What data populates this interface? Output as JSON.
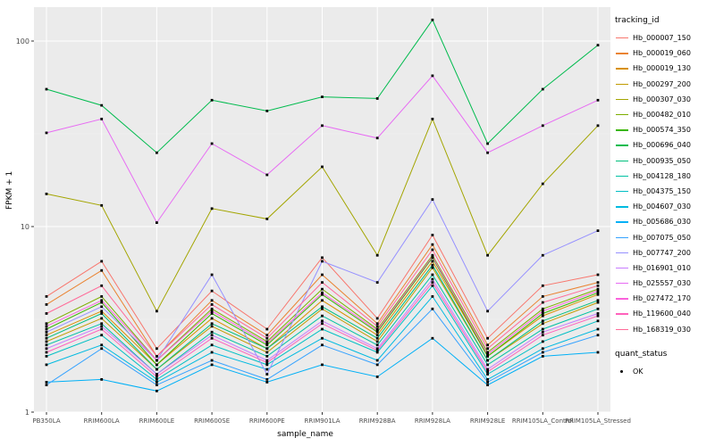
{
  "page": {
    "background": "#FFFFFF",
    "panel_background": "#EBEBEB",
    "grid_major_color": "#FFFFFF",
    "grid_minor_color": "#F4F4F4",
    "tick_text_color": "#4D4D4D",
    "axis_title_color": "#000000"
  },
  "axes": {
    "x_title": "sample_name",
    "y_title": "FPKM + 1"
  },
  "legend": {
    "tracking_title": "tracking_id",
    "quant_title": "quant_status",
    "quant_items": [
      {
        "label": "OK",
        "key": "black-point",
        "color": "#000000"
      }
    ]
  },
  "chart_data": {
    "type": "line",
    "xlabel": "sample_name",
    "ylabel": "FPKM + 1",
    "y_scale": "log10",
    "ylim": [
      1,
      155
    ],
    "y_ticks": [
      1,
      10,
      100
    ],
    "y_tick_labels": [
      "1",
      "10",
      "100"
    ],
    "y_minor": [
      3.162,
      31.62
    ],
    "grid": true,
    "legend_position": "right",
    "point_color": "#000000",
    "categories": [
      "PB350LA",
      "RRIM600LA",
      "RRIM600LE",
      "RRIM600SE",
      "RRIM600PE",
      "RRIM901LA",
      "RRIM928BA",
      "RRIM928LA",
      "RRIM928LE",
      "RRIM105LA_Control",
      "RRIM105LA_Stressed"
    ],
    "series": [
      {
        "name": "Hb_000007_150",
        "color": "#F8766D",
        "values": [
          4.2,
          6.5,
          2.2,
          4.5,
          2.8,
          6.8,
          3.2,
          9.0,
          2.5,
          4.8,
          5.5
        ]
      },
      {
        "name": "Hb_000019_060",
        "color": "#EA8331",
        "values": [
          3.8,
          5.8,
          2.0,
          4.0,
          2.6,
          5.5,
          3.0,
          8.0,
          2.3,
          4.2,
          5.0
        ]
      },
      {
        "name": "Hb_000019_130",
        "color": "#D89000",
        "values": [
          2.6,
          3.5,
          1.8,
          3.2,
          2.2,
          4.0,
          2.6,
          6.5,
          2.0,
          3.3,
          4.3
        ]
      },
      {
        "name": "Hb_000297_200",
        "color": "#C09B00",
        "values": [
          2.4,
          3.2,
          1.7,
          2.9,
          2.1,
          3.6,
          2.4,
          6.0,
          1.9,
          3.0,
          3.9
        ]
      },
      {
        "name": "Hb_000307_030",
        "color": "#A3A500",
        "values": [
          15,
          13,
          3.5,
          12.5,
          11,
          21,
          7.0,
          38,
          7.0,
          17,
          35
        ]
      },
      {
        "name": "Hb_000482_010",
        "color": "#7CAE00",
        "values": [
          3.0,
          4.2,
          1.9,
          3.6,
          2.4,
          4.6,
          2.8,
          7.0,
          2.1,
          3.6,
          4.6
        ]
      },
      {
        "name": "Hb_000574_350",
        "color": "#39B600",
        "values": [
          2.8,
          3.9,
          1.8,
          3.4,
          2.3,
          4.3,
          2.7,
          6.8,
          2.0,
          3.4,
          4.4
        ]
      },
      {
        "name": "Hb_000696_040",
        "color": "#00BB4E",
        "values": [
          55,
          45,
          25,
          48,
          42,
          50,
          49,
          130,
          28,
          55,
          95
        ]
      },
      {
        "name": "Hb_000935_050",
        "color": "#00BF7D",
        "values": [
          2.5,
          3.4,
          1.7,
          3.0,
          2.2,
          3.7,
          2.5,
          6.2,
          1.9,
          3.1,
          4.0
        ]
      },
      {
        "name": "Hb_004128_180",
        "color": "#00C1A3",
        "values": [
          2.3,
          3.0,
          1.6,
          2.7,
          2.0,
          3.3,
          2.3,
          5.5,
          1.8,
          2.8,
          3.6
        ]
      },
      {
        "name": "Hb_004375_150",
        "color": "#00BFC4",
        "values": [
          2.0,
          2.6,
          1.5,
          2.3,
          1.8,
          2.8,
          2.1,
          4.8,
          1.6,
          2.4,
          3.1
        ]
      },
      {
        "name": "Hb_004607_030",
        "color": "#00BAE0",
        "values": [
          1.8,
          2.3,
          1.45,
          2.1,
          1.7,
          2.5,
          1.9,
          4.2,
          1.5,
          2.2,
          2.8
        ]
      },
      {
        "name": "Hb_005686_030",
        "color": "#00B0F6",
        "values": [
          1.45,
          1.5,
          1.3,
          1.8,
          1.45,
          1.8,
          1.55,
          2.5,
          1.4,
          2.0,
          2.1
        ]
      },
      {
        "name": "Hb_007075_050",
        "color": "#35A2FF",
        "values": [
          1.4,
          2.2,
          1.4,
          1.9,
          1.5,
          2.3,
          1.8,
          3.6,
          1.45,
          2.1,
          2.6
        ]
      },
      {
        "name": "Hb_007747_200",
        "color": "#9590FF",
        "values": [
          2.7,
          3.7,
          1.9,
          5.5,
          1.6,
          6.5,
          5.0,
          14,
          3.5,
          7.0,
          9.5
        ]
      },
      {
        "name": "Hb_016901_010",
        "color": "#C77CFF",
        "values": [
          2.2,
          2.9,
          1.6,
          2.6,
          1.9,
          3.1,
          2.2,
          5.2,
          1.7,
          2.7,
          3.4
        ]
      },
      {
        "name": "Hb_025557_030",
        "color": "#E76BF3",
        "values": [
          32,
          38,
          10.5,
          28,
          19,
          35,
          30,
          65,
          25,
          35,
          48
        ]
      },
      {
        "name": "Hb_027472_170",
        "color": "#FA62DB",
        "values": [
          2.9,
          4.0,
          1.9,
          3.5,
          2.35,
          4.4,
          2.75,
          6.9,
          2.05,
          3.5,
          4.5
        ]
      },
      {
        "name": "Hb_119600_040",
        "color": "#FF62BC",
        "values": [
          2.1,
          2.8,
          1.55,
          2.5,
          1.85,
          3.0,
          2.15,
          5.0,
          1.65,
          2.6,
          3.3
        ]
      },
      {
        "name": "Hb_168319_030",
        "color": "#FF6A98",
        "values": [
          3.4,
          4.8,
          2.0,
          3.8,
          2.5,
          5.0,
          2.9,
          7.5,
          2.2,
          3.9,
          4.8
        ]
      }
    ]
  }
}
